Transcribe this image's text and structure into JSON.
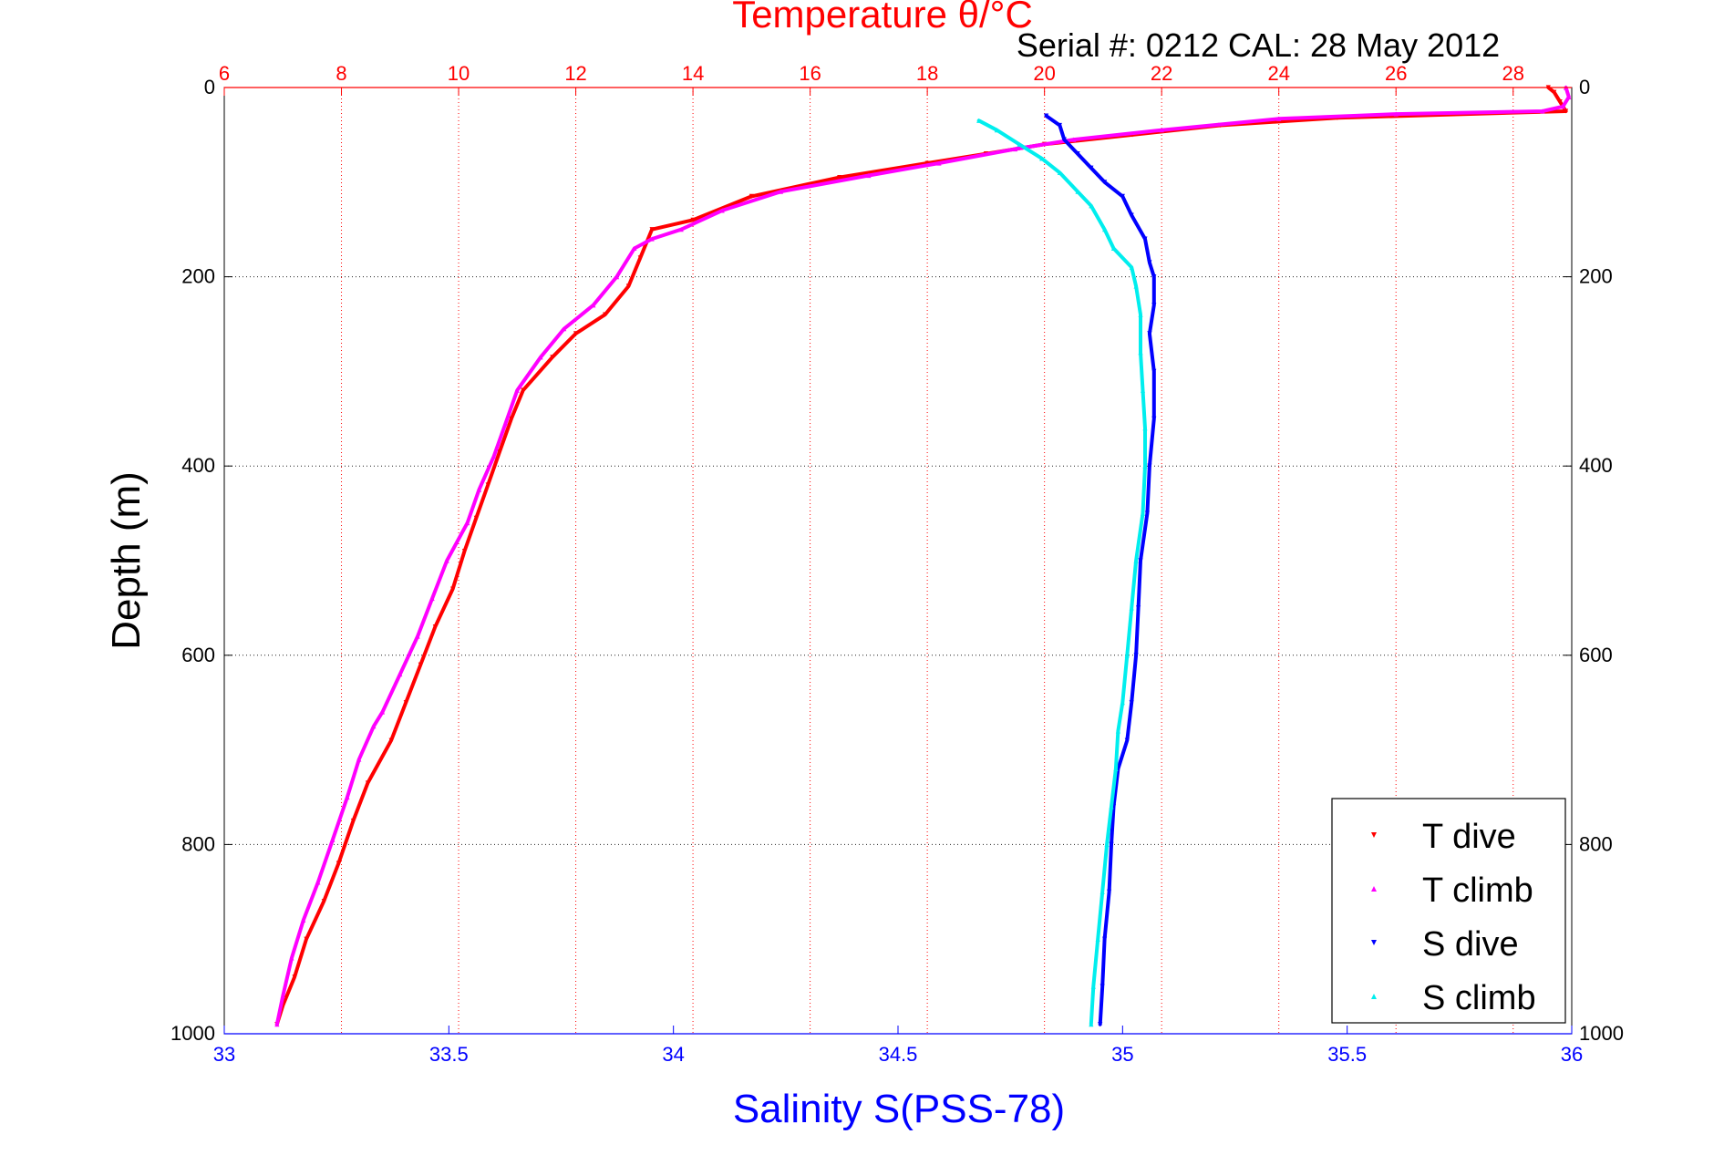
{
  "chart_data": {
    "type": "scatter",
    "title": "Temperature θ/°C",
    "subtitle": "Serial #: 0212  CAL: 28 May 2012",
    "ylabel": "Depth (m)",
    "xlabel": "Salinity S(PSS-78)",
    "y_axis": {
      "range": [
        0,
        1000
      ],
      "reversed": true,
      "ticks": [
        "0",
        "200",
        "400",
        "600",
        "800",
        "1000"
      ],
      "grid": true
    },
    "x_top_axis": {
      "quantity": "Temperature",
      "range": [
        6,
        29
      ],
      "ticks": [
        "6",
        "8",
        "10",
        "12",
        "14",
        "16",
        "18",
        "20",
        "22",
        "24",
        "26",
        "28"
      ],
      "grid": true
    },
    "x_bottom_axis": {
      "quantity": "Salinity",
      "range": [
        33,
        36
      ],
      "ticks": [
        "33",
        "33.5",
        "34",
        "34.5",
        "35",
        "35.5",
        "36"
      ]
    },
    "legend": {
      "position": "bottom-right"
    },
    "colors": {
      "title": "#ff0000",
      "top_axis": "#ff0000",
      "bottom_axis": "#0000ff",
      "label_black": "#000000"
    },
    "series": [
      {
        "name": "T dive",
        "axis": "top",
        "color": "#ff0000",
        "marker": "triangle-down",
        "points": [
          [
            28.6,
            0
          ],
          [
            28.7,
            5
          ],
          [
            28.8,
            15
          ],
          [
            28.9,
            25
          ],
          [
            25,
            32
          ],
          [
            23,
            40
          ],
          [
            21.5,
            50
          ],
          [
            20,
            60
          ],
          [
            19,
            70
          ],
          [
            18,
            80
          ],
          [
            16.5,
            95
          ],
          [
            15,
            115
          ],
          [
            14,
            140
          ],
          [
            13.3,
            150
          ],
          [
            13.2,
            165
          ],
          [
            13.1,
            180
          ],
          [
            12.9,
            210
          ],
          [
            12.5,
            240
          ],
          [
            12,
            260
          ],
          [
            11.6,
            285
          ],
          [
            11.1,
            320
          ],
          [
            10.9,
            350
          ],
          [
            10.7,
            385
          ],
          [
            10.5,
            420
          ],
          [
            10.3,
            455
          ],
          [
            10.1,
            490
          ],
          [
            9.9,
            530
          ],
          [
            9.6,
            570
          ],
          [
            9.35,
            610
          ],
          [
            9.1,
            650
          ],
          [
            8.85,
            690
          ],
          [
            8.45,
            735
          ],
          [
            8.2,
            775
          ],
          [
            7.95,
            820
          ],
          [
            7.7,
            860
          ],
          [
            7.4,
            900
          ],
          [
            7.2,
            940
          ],
          [
            7.0,
            970
          ],
          [
            6.9,
            990
          ]
        ]
      },
      {
        "name": "T climb",
        "axis": "top",
        "color": "#ff00ff",
        "marker": "triangle-up",
        "points": [
          [
            28.9,
            0
          ],
          [
            28.95,
            10
          ],
          [
            28.85,
            20
          ],
          [
            28.5,
            25
          ],
          [
            26,
            28
          ],
          [
            24,
            33
          ],
          [
            22,
            45
          ],
          [
            20.5,
            55
          ],
          [
            19.5,
            65
          ],
          [
            18.2,
            80
          ],
          [
            17,
            93
          ],
          [
            15.5,
            110
          ],
          [
            14.5,
            130
          ],
          [
            13.8,
            150
          ],
          [
            13.3,
            160
          ],
          [
            13.0,
            170
          ],
          [
            12.7,
            200
          ],
          [
            12.3,
            230
          ],
          [
            11.8,
            255
          ],
          [
            11.4,
            285
          ],
          [
            11.0,
            320
          ],
          [
            10.8,
            355
          ],
          [
            10.6,
            390
          ],
          [
            10.35,
            425
          ],
          [
            10.15,
            460
          ],
          [
            9.8,
            500
          ],
          [
            9.55,
            540
          ],
          [
            9.3,
            580
          ],
          [
            9.0,
            620
          ],
          [
            8.7,
            660
          ],
          [
            8.55,
            675
          ],
          [
            8.3,
            710
          ],
          [
            8.1,
            750
          ],
          [
            7.85,
            795
          ],
          [
            7.6,
            840
          ],
          [
            7.35,
            880
          ],
          [
            7.15,
            920
          ],
          [
            7.0,
            960
          ],
          [
            6.9,
            990
          ]
        ]
      },
      {
        "name": "S dive",
        "axis": "bottom",
        "color": "#0000ff",
        "marker": "triangle-down",
        "points": [
          [
            34.83,
            30
          ],
          [
            34.86,
            40
          ],
          [
            34.87,
            55
          ],
          [
            34.9,
            70
          ],
          [
            34.93,
            85
          ],
          [
            34.96,
            100
          ],
          [
            35.0,
            115
          ],
          [
            35.02,
            135
          ],
          [
            35.05,
            160
          ],
          [
            35.06,
            185
          ],
          [
            35.07,
            200
          ],
          [
            35.07,
            230
          ],
          [
            35.06,
            260
          ],
          [
            35.07,
            300
          ],
          [
            35.07,
            350
          ],
          [
            35.06,
            400
          ],
          [
            35.055,
            450
          ],
          [
            35.04,
            500
          ],
          [
            35.035,
            550
          ],
          [
            35.03,
            600
          ],
          [
            35.02,
            650
          ],
          [
            35.01,
            690
          ],
          [
            34.99,
            720
          ],
          [
            34.98,
            760
          ],
          [
            34.975,
            800
          ],
          [
            34.97,
            850
          ],
          [
            34.96,
            900
          ],
          [
            34.955,
            950
          ],
          [
            34.95,
            990
          ]
        ]
      },
      {
        "name": "S climb",
        "axis": "bottom",
        "color": "#00eeee",
        "marker": "triangle-up",
        "points": [
          [
            34.68,
            35
          ],
          [
            34.72,
            45
          ],
          [
            34.77,
            60
          ],
          [
            34.82,
            75
          ],
          [
            34.86,
            90
          ],
          [
            34.9,
            110
          ],
          [
            34.93,
            125
          ],
          [
            34.96,
            150
          ],
          [
            34.98,
            170
          ],
          [
            35.02,
            190
          ],
          [
            35.03,
            210
          ],
          [
            35.04,
            240
          ],
          [
            35.04,
            280
          ],
          [
            35.045,
            320
          ],
          [
            35.05,
            360
          ],
          [
            35.05,
            400
          ],
          [
            35.045,
            450
          ],
          [
            35.03,
            500
          ],
          [
            35.02,
            550
          ],
          [
            35.01,
            600
          ],
          [
            35.0,
            650
          ],
          [
            34.99,
            680
          ],
          [
            34.985,
            720
          ],
          [
            34.975,
            760
          ],
          [
            34.965,
            800
          ],
          [
            34.955,
            850
          ],
          [
            34.945,
            900
          ],
          [
            34.935,
            950
          ],
          [
            34.93,
            990
          ]
        ]
      }
    ]
  }
}
